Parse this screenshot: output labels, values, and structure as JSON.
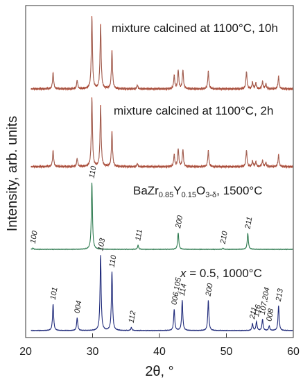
{
  "chart_data": {
    "type": "line",
    "xlabel": "2θ, °",
    "ylabel": "Intensity, arb. units",
    "xlim": [
      20,
      60
    ],
    "xticks": [
      20,
      30,
      40,
      50,
      60
    ],
    "colors": {
      "calcined_10h": "#b03a22",
      "calcined_10h_fit": "#8a8a8a",
      "calcined_2h": "#b03a22",
      "calcined_2h_fit": "#8a8a8a",
      "bzy": "#2d7a4f",
      "bazr_1000": "#1f2a7a"
    },
    "series": [
      {
        "key": "calcined_10h",
        "label": "mixture calcined at 1100°C, 10h",
        "peaks": [
          [
            24.1,
            0.22
          ],
          [
            27.7,
            0.12
          ],
          [
            29.9,
            1.0
          ],
          [
            31.2,
            0.88
          ],
          [
            32.9,
            0.52
          ],
          [
            36.7,
            0.05
          ],
          [
            42.2,
            0.18
          ],
          [
            42.8,
            0.26
          ],
          [
            43.5,
            0.26
          ],
          [
            47.3,
            0.24
          ],
          [
            53.0,
            0.24
          ],
          [
            53.9,
            0.09
          ],
          [
            54.4,
            0.08
          ],
          [
            55.4,
            0.1
          ],
          [
            55.9,
            0.07
          ],
          [
            57.8,
            0.17
          ]
        ]
      },
      {
        "key": "calcined_2h",
        "label": "mixture calcined at 1100°C, 2h",
        "peaks": [
          [
            24.1,
            0.23
          ],
          [
            27.7,
            0.12
          ],
          [
            29.9,
            1.0
          ],
          [
            31.2,
            0.88
          ],
          [
            32.9,
            0.5
          ],
          [
            36.7,
            0.04
          ],
          [
            42.2,
            0.17
          ],
          [
            42.8,
            0.26
          ],
          [
            43.5,
            0.25
          ],
          [
            47.3,
            0.23
          ],
          [
            53.0,
            0.24
          ],
          [
            53.9,
            0.08
          ],
          [
            54.4,
            0.07
          ],
          [
            55.4,
            0.09
          ],
          [
            55.9,
            0.06
          ],
          [
            57.8,
            0.17
          ]
        ]
      },
      {
        "key": "bzy",
        "label_parts": [
          "BaZr",
          "0.85",
          "Y",
          "0.15",
          "O",
          "3-δ",
          ", 1500°C"
        ],
        "peaks": [
          [
            21.1,
            0.02
          ],
          [
            29.9,
            1.0
          ],
          [
            36.8,
            0.06
          ],
          [
            42.8,
            0.25
          ],
          [
            49.5,
            0.015
          ],
          [
            53.2,
            0.24
          ]
        ],
        "hkl": [
          {
            "two_theta": 21.1,
            "text": "100"
          },
          {
            "two_theta": 29.9,
            "text": "110"
          },
          {
            "two_theta": 36.8,
            "text": "111"
          },
          {
            "two_theta": 42.8,
            "text": "200"
          },
          {
            "two_theta": 49.5,
            "text": "210"
          },
          {
            "two_theta": 53.2,
            "text": "211"
          }
        ]
      },
      {
        "key": "bazr_1000",
        "label_parts": [
          "x",
          " = 0.5, 1000°C"
        ],
        "peaks": [
          [
            24.1,
            0.35
          ],
          [
            27.7,
            0.17
          ],
          [
            31.2,
            1.0
          ],
          [
            32.9,
            0.78
          ],
          [
            35.8,
            0.04
          ],
          [
            42.2,
            0.28
          ],
          [
            43.4,
            0.4
          ],
          [
            47.3,
            0.4
          ],
          [
            53.9,
            0.09
          ],
          [
            54.5,
            0.12
          ],
          [
            55.4,
            0.15
          ],
          [
            56.4,
            0.06
          ],
          [
            57.8,
            0.33
          ]
        ],
        "hkl": [
          {
            "two_theta": 24.1,
            "text": "101"
          },
          {
            "two_theta": 27.7,
            "text": "004"
          },
          {
            "two_theta": 31.2,
            "text": "103"
          },
          {
            "two_theta": 32.9,
            "text": "110"
          },
          {
            "two_theta": 35.8,
            "text": "112"
          },
          {
            "two_theta": 42.2,
            "text": "006,105"
          },
          {
            "two_theta": 43.4,
            "text": "114"
          },
          {
            "two_theta": 47.3,
            "text": "200"
          },
          {
            "two_theta": 53.9,
            "text": "211"
          },
          {
            "two_theta": 54.5,
            "text": "116"
          },
          {
            "two_theta": 55.4,
            "text": "107,204"
          },
          {
            "two_theta": 56.4,
            "text": "008"
          },
          {
            "two_theta": 57.8,
            "text": "213"
          }
        ]
      }
    ]
  }
}
